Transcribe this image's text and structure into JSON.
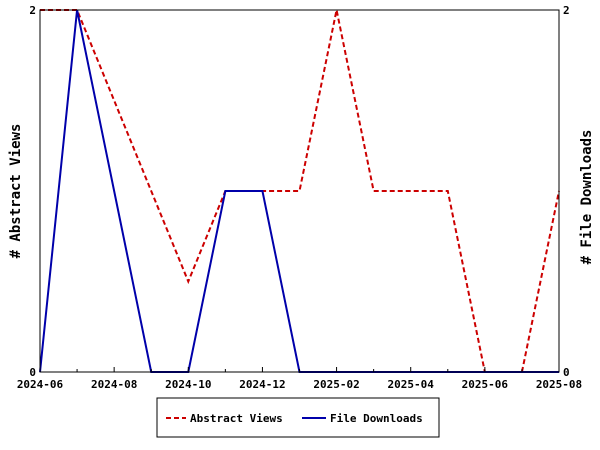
{
  "chart_data": {
    "type": "line",
    "x": [
      "2024-06",
      "2024-07",
      "2024-08",
      "2024-09",
      "2024-10",
      "2024-11",
      "2024-12",
      "2025-01",
      "2025-02",
      "2025-03",
      "2025-04",
      "2025-05",
      "2025-06",
      "2025-07",
      "2025-08"
    ],
    "xticks": [
      "2024-06",
      "2024-08",
      "2024-10",
      "2024-12",
      "2025-02",
      "2025-04",
      "2025-06",
      "2025-08"
    ],
    "ylabel_left": "# Abstract Views",
    "ylabel_right": "# File Downloads",
    "ylim_left": [
      0,
      2
    ],
    "ylim_right": [
      0,
      2
    ],
    "yticks_left": [
      "0",
      "2"
    ],
    "yticks_right": [
      "0",
      "2"
    ],
    "legend_position": "bottom-center",
    "series": [
      {
        "name": "Abstract Views",
        "color": "#cc0000",
        "dash": "dashed",
        "axis": "left",
        "values": [
          2,
          2,
          1.5,
          1,
          0.5,
          1,
          1,
          1,
          2,
          1,
          1,
          1,
          0,
          0,
          1
        ]
      },
      {
        "name": "File Downloads",
        "color": "#0000aa",
        "dash": "solid",
        "axis": "right",
        "values": [
          0,
          2,
          1,
          0,
          0,
          1,
          1,
          0,
          0,
          0,
          0,
          0,
          0,
          0,
          0
        ]
      }
    ]
  }
}
